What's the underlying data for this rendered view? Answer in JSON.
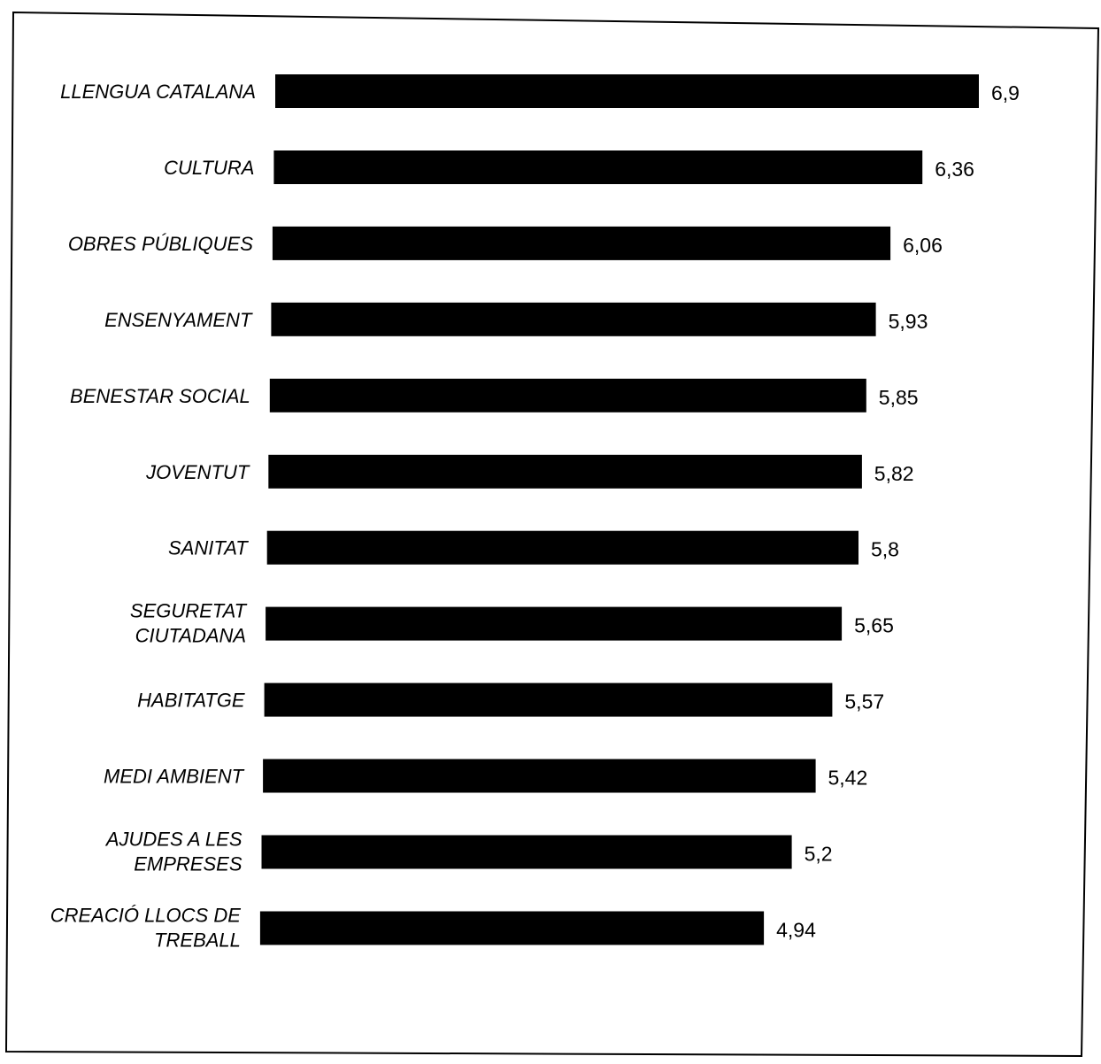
{
  "chart_data": {
    "type": "bar",
    "orientation": "horizontal",
    "categories": [
      [
        "LLENGUA CATALANA"
      ],
      [
        "CULTURA"
      ],
      [
        "OBRES PÚBLIQUES"
      ],
      [
        "ENSENYAMENT"
      ],
      [
        "BENESTAR SOCIAL"
      ],
      [
        "JOVENTUT"
      ],
      [
        "SANITAT"
      ],
      [
        "SEGURETAT",
        "CIUTADANA"
      ],
      [
        "HABITATGE"
      ],
      [
        "MEDI AMBIENT"
      ],
      [
        "AJUDES A LES",
        "EMPRESES"
      ],
      [
        "CREACIÓ LLOCS DE",
        "TREBALL"
      ]
    ],
    "values": [
      6.9,
      6.36,
      6.06,
      5.93,
      5.85,
      5.82,
      5.8,
      5.65,
      5.57,
      5.42,
      5.2,
      4.94
    ],
    "value_labels": [
      "6,9",
      "6,36",
      "6,06",
      "5,93",
      "5,85",
      "5,82",
      "5,8",
      "5,65",
      "5,57",
      "5,42",
      "5,2",
      "4,94"
    ],
    "bar_color": "#000000",
    "grid": false,
    "legend": "none"
  }
}
